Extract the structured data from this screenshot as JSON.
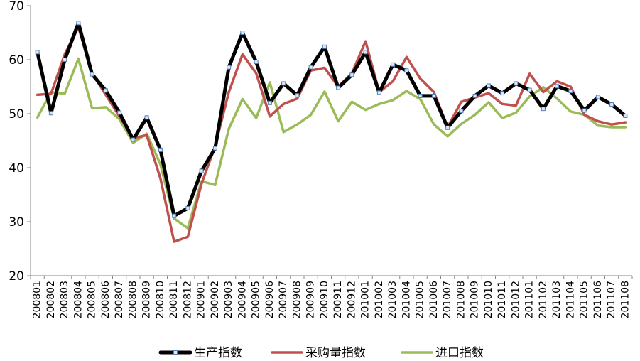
{
  "chart_data": {
    "type": "line",
    "title": "",
    "xlabel": "",
    "ylabel": "",
    "ylim": [
      20,
      70
    ],
    "yticks": [
      20,
      30,
      40,
      50,
      60,
      70
    ],
    "grid": false,
    "legend_position": "bottom",
    "categories": [
      "200801",
      "200802",
      "200803",
      "200804",
      "200805",
      "200806",
      "200807",
      "200808",
      "200809",
      "200810",
      "200811",
      "200812",
      "200901",
      "200902",
      "200903",
      "200904",
      "200905",
      "200906",
      "200907",
      "200908",
      "200909",
      "200910",
      "200911",
      "200912",
      "201001",
      "201002",
      "201003",
      "201004",
      "201005",
      "201006",
      "201007",
      "201008",
      "201009",
      "201010",
      "201011",
      "201012",
      "201101",
      "201102",
      "201103",
      "201104",
      "201105",
      "201106",
      "201107",
      "201108"
    ],
    "series": [
      {
        "name": "生产指数",
        "color": "#000000",
        "markers": true,
        "values": [
          61.4,
          50.1,
          60.0,
          66.8,
          57.3,
          54.3,
          50.2,
          45.2,
          49.3,
          43.3,
          31.1,
          32.5,
          39.4,
          43.6,
          58.6,
          65.0,
          59.6,
          52.0,
          55.6,
          53.4,
          58.6,
          62.4,
          54.8,
          57.2,
          61.4,
          53.9,
          59.1,
          58.0,
          53.3,
          53.3,
          47.4,
          50.5,
          53.3,
          55.2,
          53.8,
          55.6,
          54.4,
          50.9,
          55.1,
          54.2,
          50.6,
          53.1,
          51.7,
          49.6
        ]
      },
      {
        "name": "采购量指数",
        "color": "#C0504D",
        "markers": false,
        "values": [
          53.5,
          53.7,
          61.0,
          66.0,
          57.5,
          53.5,
          49.5,
          45.5,
          46.0,
          38.0,
          26.3,
          27.2,
          37.0,
          44.0,
          54.0,
          61.0,
          57.5,
          49.5,
          51.8,
          52.8,
          58.0,
          58.5,
          55.0,
          57.5,
          63.4,
          54.0,
          56.0,
          60.5,
          56.5,
          54.0,
          47.5,
          52.2,
          53.0,
          53.8,
          51.8,
          51.5,
          57.4,
          54.0,
          56.0,
          55.0,
          49.8,
          48.6,
          48.0,
          48.4
        ]
      },
      {
        "name": "进口指数",
        "color": "#9BBB59",
        "markers": false,
        "values": [
          49.3,
          54.0,
          53.7,
          60.2,
          51.0,
          51.2,
          49.0,
          44.6,
          46.3,
          40.6,
          30.6,
          28.8,
          37.5,
          36.8,
          47.2,
          52.7,
          49.2,
          55.8,
          46.6,
          48.0,
          49.8,
          54.1,
          48.6,
          52.2,
          50.7,
          51.8,
          52.5,
          54.2,
          52.7,
          48.0,
          45.8,
          48.1,
          49.8,
          52.1,
          49.2,
          50.2,
          53.2,
          54.9,
          52.8,
          50.4,
          49.8,
          47.8,
          47.5,
          47.5
        ]
      }
    ]
  }
}
